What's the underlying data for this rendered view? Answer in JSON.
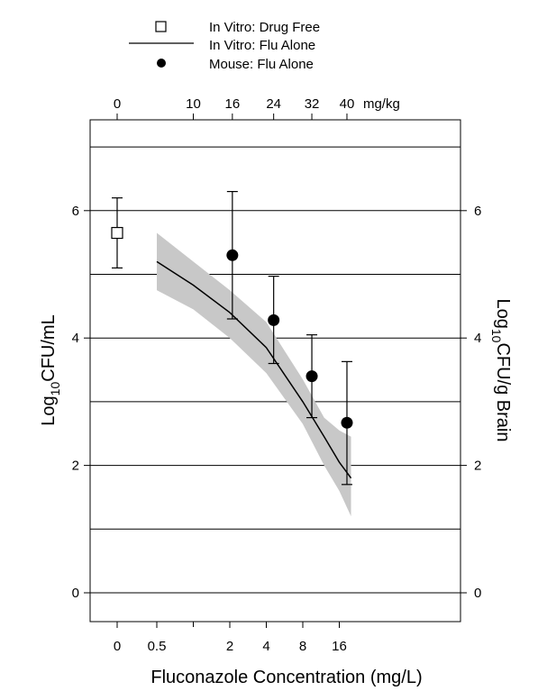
{
  "chart_data": {
    "type": "line",
    "xlabel": "Fluconazole Concentration (mg/L)",
    "ylabel_left": {
      "main": "Log",
      "sub": "10",
      "rest": "CFU/mL"
    },
    "ylabel_right": {
      "main": "Log",
      "sub": "10",
      "rest": "CFU/g Brain"
    },
    "x_axis_note": "log2-spaced concentration axis; 0 drawn as a separate category left of 0.5",
    "ylim": [
      -0.6,
      7.4
    ],
    "grid": "horizontal lines at every integer",
    "bottom_ticks": [
      {
        "label": "0",
        "x": 0
      },
      {
        "label": "0.5",
        "x": 0.5
      },
      {
        "label": "2",
        "x": 2
      },
      {
        "label": "4",
        "x": 4
      },
      {
        "label": "8",
        "x": 8
      },
      {
        "label": "16",
        "x": 16
      }
    ],
    "bottom_minor_ticks": [
      1
    ],
    "top_ticks": [
      {
        "label": "0",
        "x": 0
      },
      {
        "label": "10",
        "x": 1.0
      },
      {
        "label": "16",
        "x": 2.1
      },
      {
        "label": "24",
        "x": 4.6
      },
      {
        "label": "32",
        "x": 9.5
      },
      {
        "label": "40",
        "x": 18.5
      }
    ],
    "top_unit": "mg/kg",
    "left_ticks": [
      0,
      2,
      4,
      6
    ],
    "right_ticks": [
      0,
      2,
      4,
      6
    ],
    "legend": [
      {
        "marker": "open-square",
        "label": "In Vitro: Drug Free"
      },
      {
        "marker": "line",
        "label": "In Vitro: Flu Alone"
      },
      {
        "marker": "filled-circle",
        "label": "Mouse: Flu Alone"
      }
    ],
    "series": [
      {
        "name": "In Vitro: Drug Free",
        "marker": "open-square",
        "points": [
          {
            "x": 0,
            "y": 5.65,
            "ylow": 5.1,
            "yhigh": 6.2
          }
        ]
      },
      {
        "name": "In Vitro: Flu Alone",
        "marker": "line",
        "line": [
          {
            "x": 0.5,
            "y": 5.2
          },
          {
            "x": 1,
            "y": 4.83
          },
          {
            "x": 2,
            "y": 4.4
          },
          {
            "x": 4,
            "y": 3.85
          },
          {
            "x": 8,
            "y": 3.0
          },
          {
            "x": 12,
            "y": 2.45
          },
          {
            "x": 16,
            "y": 2.05
          },
          {
            "x": 20,
            "y": 1.8
          }
        ],
        "band_upper": [
          {
            "x": 0.5,
            "y": 5.65
          },
          {
            "x": 1,
            "y": 5.2
          },
          {
            "x": 2,
            "y": 4.75
          },
          {
            "x": 4,
            "y": 4.25
          },
          {
            "x": 8,
            "y": 3.35
          },
          {
            "x": 12,
            "y": 2.75
          },
          {
            "x": 16,
            "y": 2.55
          },
          {
            "x": 20,
            "y": 2.45
          }
        ],
        "band_lower": [
          {
            "x": 0.5,
            "y": 4.75
          },
          {
            "x": 1,
            "y": 4.45
          },
          {
            "x": 2,
            "y": 4.0
          },
          {
            "x": 4,
            "y": 3.45
          },
          {
            "x": 8,
            "y": 2.65
          },
          {
            "x": 12,
            "y": 2.0
          },
          {
            "x": 16,
            "y": 1.6
          },
          {
            "x": 20,
            "y": 1.2
          }
        ]
      },
      {
        "name": "Mouse: Flu Alone",
        "marker": "filled-circle",
        "points": [
          {
            "x": 2.1,
            "y": 5.3,
            "ylow": 4.3,
            "yhigh": 6.3
          },
          {
            "x": 4.6,
            "y": 4.28,
            "ylow": 3.6,
            "yhigh": 4.97
          },
          {
            "x": 9.5,
            "y": 3.4,
            "ylow": 2.75,
            "yhigh": 4.05
          },
          {
            "x": 18.5,
            "y": 2.67,
            "ylow": 1.7,
            "yhigh": 3.63
          }
        ]
      }
    ]
  }
}
